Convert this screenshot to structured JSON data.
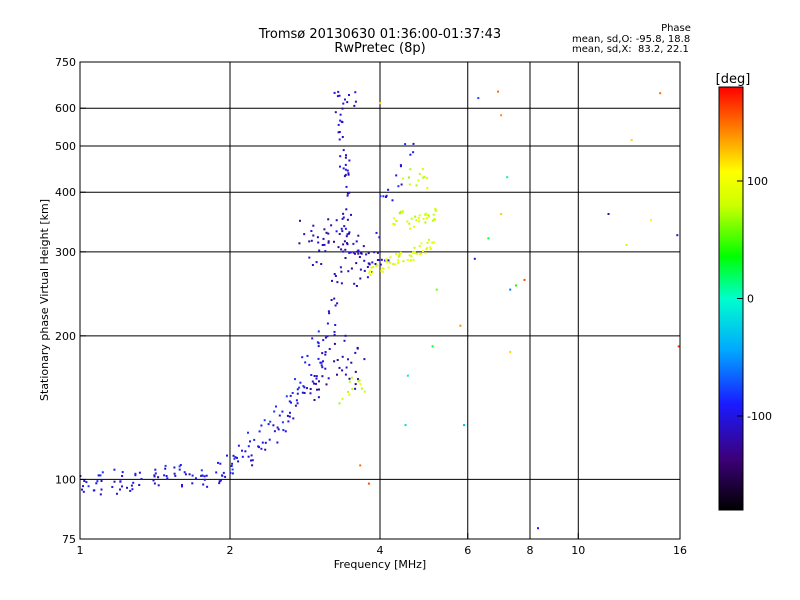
{
  "title": {
    "line1": "Tromsø 20130630 01:36:00-01:37:43",
    "line2": "RwPretec (8p)"
  },
  "phase_stats": {
    "header": "Phase",
    "row_o": "mean, sd,O: -95.8, 18.8",
    "row_x": "mean, sd,X:  83.2, 22.1"
  },
  "colorbar": {
    "title": "[deg]",
    "ticks": [
      {
        "value": 100,
        "label": "100"
      },
      {
        "value": 0,
        "label": "0"
      },
      {
        "value": -100,
        "label": "-100"
      }
    ],
    "range": [
      -180,
      180
    ]
  },
  "chart_data": {
    "type": "scatter",
    "xlabel": "Frequency [MHz]",
    "ylabel": "Stationary phase Virtual Height [km]",
    "xscale": "log",
    "yscale": "log",
    "xlim": [
      1,
      16
    ],
    "ylim": [
      75,
      750
    ],
    "xticks": [
      {
        "value": 1,
        "label": "1"
      },
      {
        "value": 2,
        "label": "2"
      },
      {
        "value": 4,
        "label": "4"
      },
      {
        "value": 6,
        "label": "6"
      },
      {
        "value": 8,
        "label": "8"
      },
      {
        "value": 10,
        "label": "10"
      },
      {
        "value": 16,
        "label": "16"
      }
    ],
    "xgrid": [
      2,
      4,
      6,
      8,
      10
    ],
    "yticks": [
      {
        "value": 75,
        "label": "75"
      },
      {
        "value": 100,
        "label": "100"
      },
      {
        "value": 200,
        "label": "200"
      },
      {
        "value": 300,
        "label": "300"
      },
      {
        "value": 400,
        "label": "400"
      },
      {
        "value": 500,
        "label": "500"
      },
      {
        "value": 600,
        "label": "600"
      },
      {
        "value": 750,
        "label": "750"
      }
    ],
    "ygrid": [
      100,
      200,
      300,
      400,
      500,
      600
    ],
    "color_by": "phase_deg",
    "series": [
      {
        "traces": [
          {
            "x": [
              1.0,
              1.08,
              1.18,
              1.28,
              1.4,
              1.52,
              1.65,
              1.78,
              1.92,
              2.05,
              2.18,
              2.3,
              2.42,
              2.55,
              2.68,
              2.8,
              2.9,
              3.0,
              3.08,
              3.16,
              3.24,
              3.3,
              3.36,
              3.42,
              3.48
            ],
            "y": [
              97,
              96,
              97,
              98,
              100,
              101,
              99,
              100,
              103,
              107,
              112,
              118,
              125,
              132,
              140,
              150,
              160,
              172,
              185,
              205,
              230,
              270,
              340,
              450,
              620
            ],
            "phase": -105,
            "spread": 0.06,
            "per": 6
          },
          {
            "x": [
              1.02,
              1.1,
              1.2,
              1.3,
              1.45,
              1.6,
              1.75,
              1.9,
              2.0,
              2.1,
              2.2,
              2.35,
              2.5,
              2.62,
              2.75,
              2.85,
              2.95
            ],
            "y": [
              99,
              100,
              101,
              103,
              106,
              104,
              102,
              105,
              109,
              114,
              121,
              128,
              137,
              147,
              160,
              180,
              200
            ],
            "phase": -90,
            "spread": 0.05,
            "per": 4
          },
          {
            "x": [
              2.85,
              2.95,
              3.05,
              3.15,
              3.25,
              3.35,
              3.45,
              3.55,
              3.65,
              3.75,
              3.85
            ],
            "y": [
              330,
              310,
              300,
              320,
              350,
              300,
              290,
              310,
              300,
              295,
              310
            ],
            "phase": -115,
            "spread": 0.08,
            "per": 6
          },
          {
            "x": [
              3.0,
              3.1,
              3.2,
              3.3,
              3.4,
              3.5,
              3.6
            ],
            "y": [
              150,
              160,
              175,
              190,
              170,
              160,
              185
            ],
            "phase": -120,
            "spread": 0.07,
            "per": 5
          },
          {
            "x": [
              3.3,
              3.32,
              3.34,
              3.36,
              3.38,
              3.4,
              3.42,
              3.44,
              3.46
            ],
            "y": [
              640,
              600,
              560,
              520,
              480,
              440,
              400,
              360,
              320
            ],
            "phase": -110,
            "spread": 0.04,
            "per": 4
          },
          {
            "x": [
              3.6,
              3.7,
              3.8,
              3.9,
              4.0,
              4.1
            ],
            "y": [
              260,
              270,
              275,
              280,
              285,
              290
            ],
            "phase": -112,
            "spread": 0.05,
            "per": 3
          },
          {
            "x": [
              4.05,
              4.2,
              4.35,
              4.5,
              4.6
            ],
            "y": [
              380,
              390,
              420,
              470,
              500
            ],
            "phase": -95,
            "spread": 0.05,
            "per": 3
          },
          {
            "x": [
              3.85,
              4.0,
              4.15,
              4.3,
              4.45,
              4.6,
              4.75,
              4.9,
              5.05
            ],
            "y": [
              275,
              280,
              285,
              290,
              292,
              296,
              300,
              305,
              310
            ],
            "phase": 90,
            "spread": 0.035,
            "per": 6
          },
          {
            "x": [
              4.3,
              4.45,
              4.6,
              4.75,
              4.9,
              5.05,
              5.2
            ],
            "y": [
              350,
              355,
              345,
              350,
              355,
              350,
              360
            ],
            "phase": 82,
            "spread": 0.035,
            "per": 5
          },
          {
            "x": [
              4.5,
              4.6,
              4.7,
              4.8,
              4.9,
              5.0
            ],
            "y": [
              420,
              430,
              410,
              440,
              425,
              415
            ],
            "phase": 75,
            "spread": 0.05,
            "per": 2
          },
          {
            "x": [
              3.4,
              3.5,
              3.6,
              3.7
            ],
            "y": [
              150,
              155,
              160,
              158
            ],
            "phase": 80,
            "spread": 0.05,
            "per": 3
          }
        ],
        "extra_points": [
          {
            "x": 6.3,
            "y": 630,
            "phase": -75
          },
          {
            "x": 6.9,
            "y": 650,
            "phase": 150
          },
          {
            "x": 7.0,
            "y": 580,
            "phase": 140
          },
          {
            "x": 7.2,
            "y": 430,
            "phase": 10
          },
          {
            "x": 7.0,
            "y": 360,
            "phase": 120
          },
          {
            "x": 6.2,
            "y": 290,
            "phase": -110
          },
          {
            "x": 6.6,
            "y": 320,
            "phase": 30
          },
          {
            "x": 7.3,
            "y": 250,
            "phase": -60
          },
          {
            "x": 7.5,
            "y": 255,
            "phase": 40
          },
          {
            "x": 7.8,
            "y": 262,
            "phase": 160
          },
          {
            "x": 7.3,
            "y": 185,
            "phase": 120
          },
          {
            "x": 5.8,
            "y": 210,
            "phase": 140
          },
          {
            "x": 5.9,
            "y": 130,
            "phase": -40
          },
          {
            "x": 8.3,
            "y": 79,
            "phase": -95
          },
          {
            "x": 11.5,
            "y": 360,
            "phase": -120
          },
          {
            "x": 12.5,
            "y": 310,
            "phase": 80
          },
          {
            "x": 12.8,
            "y": 515,
            "phase": 120
          },
          {
            "x": 14.0,
            "y": 350,
            "phase": 110
          },
          {
            "x": 14.6,
            "y": 645,
            "phase": 150
          },
          {
            "x": 15.8,
            "y": 325,
            "phase": -110
          },
          {
            "x": 15.9,
            "y": 190,
            "phase": 160
          },
          {
            "x": 3.65,
            "y": 107,
            "phase": 150
          },
          {
            "x": 3.8,
            "y": 98,
            "phase": 160
          },
          {
            "x": 4.5,
            "y": 130,
            "phase": -20
          },
          {
            "x": 4.55,
            "y": 165,
            "phase": -10
          },
          {
            "x": 5.1,
            "y": 190,
            "phase": 30
          },
          {
            "x": 5.2,
            "y": 250,
            "phase": 60
          },
          {
            "x": 4.0,
            "y": 615,
            "phase": 120
          }
        ]
      }
    ]
  }
}
